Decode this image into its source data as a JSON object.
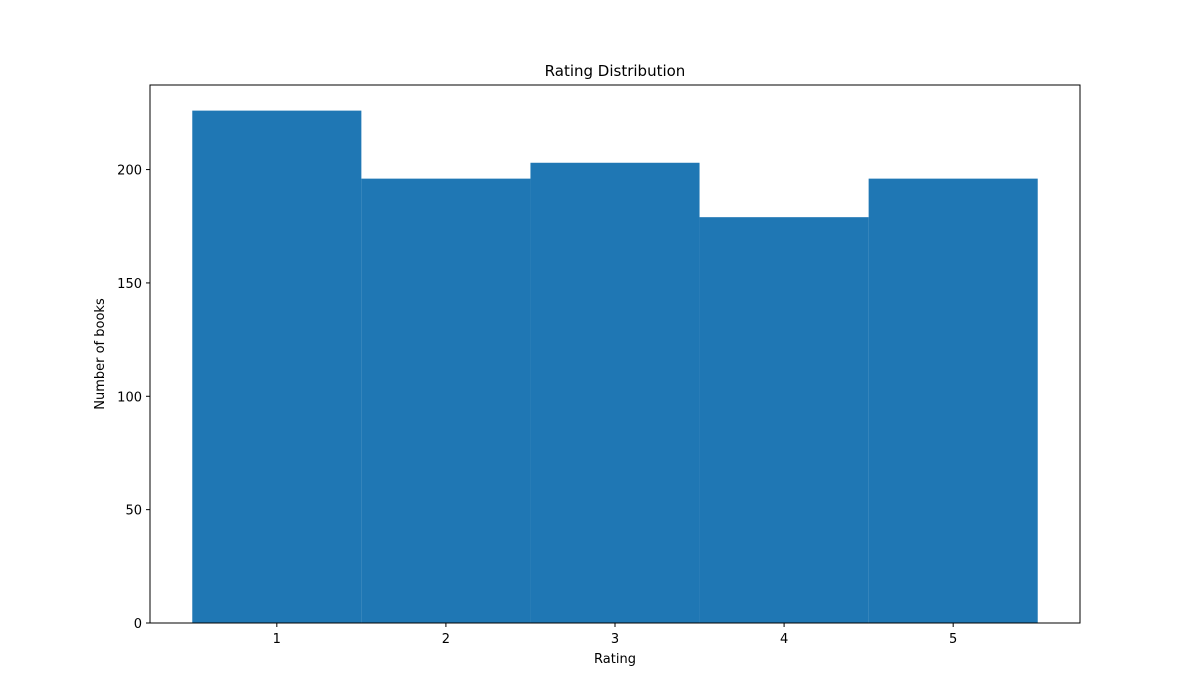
{
  "chart_data": {
    "type": "bar",
    "title": "Rating Distribution",
    "xlabel": "Rating",
    "ylabel": "Number of books",
    "categories": [
      "1",
      "2",
      "3",
      "4",
      "5"
    ],
    "x": [
      1,
      2,
      3,
      4,
      5
    ],
    "values": [
      226,
      196,
      203,
      179,
      196
    ],
    "xlim": [
      0.25,
      5.75
    ],
    "ylim": [
      0,
      237.3
    ],
    "xticks": [
      1,
      2,
      3,
      4,
      5
    ],
    "yticks": [
      0,
      50,
      100,
      150,
      200
    ],
    "bar_width": 1.0,
    "grid": false,
    "legend": "none",
    "bar_color": "#1f77b4"
  }
}
